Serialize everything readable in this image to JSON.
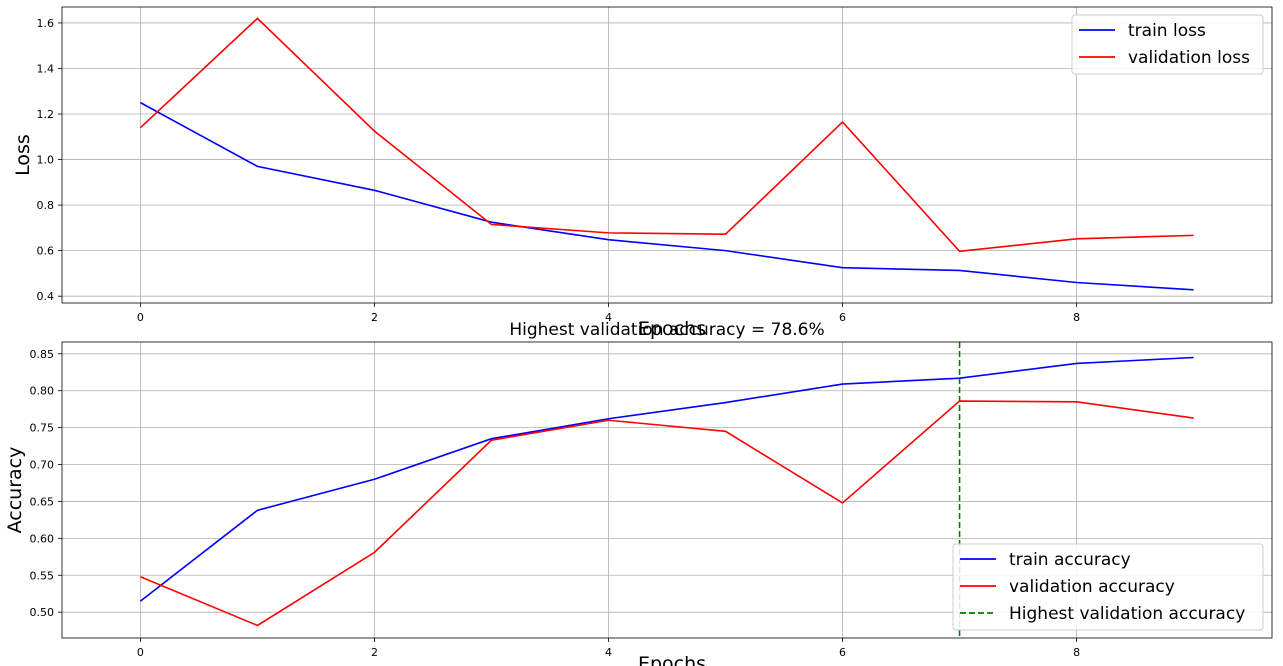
{
  "chart_data": [
    {
      "type": "line",
      "title": "",
      "xlabel": "Epochs",
      "ylabel": "Loss",
      "xlim": [
        -0.67,
        9.67
      ],
      "ylim": [
        0.37,
        1.67
      ],
      "xticks": [
        0,
        2,
        4,
        6,
        8
      ],
      "yticks": [
        0.4,
        0.6,
        0.8,
        1.0,
        1.2,
        1.4,
        1.6
      ],
      "ytick_labels": [
        "0.4",
        "0.6",
        "0.8",
        "1.0",
        "1.2",
        "1.4",
        "1.6"
      ],
      "grid": true,
      "legend_position": "top-right",
      "x": [
        0,
        1,
        2,
        3,
        4,
        5,
        6,
        7,
        8,
        9
      ],
      "series": [
        {
          "name": "train loss",
          "color": "#0000ff",
          "values": [
            1.25,
            0.97,
            0.865,
            0.725,
            0.648,
            0.6,
            0.525,
            0.513,
            0.46,
            0.428
          ]
        },
        {
          "name": "validation loss",
          "color": "#ff0000",
          "values": [
            1.14,
            1.62,
            1.125,
            0.715,
            0.678,
            0.672,
            1.165,
            0.597,
            0.652,
            0.667
          ]
        }
      ]
    },
    {
      "type": "line",
      "title": "Highest validation accuracy = 78.6%",
      "xlabel": "Epochs",
      "ylabel": "Accuracy",
      "xlim": [
        -0.67,
        9.67
      ],
      "ylim": [
        0.465,
        0.866
      ],
      "xticks": [
        0,
        2,
        4,
        6,
        8
      ],
      "yticks": [
        0.5,
        0.55,
        0.6,
        0.65,
        0.7,
        0.75,
        0.8,
        0.85
      ],
      "ytick_labels": [
        "0.50",
        "0.55",
        "0.60",
        "0.65",
        "0.70",
        "0.75",
        "0.80",
        "0.85"
      ],
      "grid": true,
      "legend_position": "bottom-right",
      "x": [
        0,
        1,
        2,
        3,
        4,
        5,
        6,
        7,
        8,
        9
      ],
      "series": [
        {
          "name": "train accuracy",
          "color": "#0000ff",
          "values": [
            0.515,
            0.638,
            0.68,
            0.735,
            0.762,
            0.784,
            0.809,
            0.817,
            0.837,
            0.845
          ]
        },
        {
          "name": "validation accuracy",
          "color": "#ff0000",
          "values": [
            0.548,
            0.482,
            0.581,
            0.733,
            0.76,
            0.745,
            0.648,
            0.786,
            0.785,
            0.763
          ]
        }
      ],
      "vline": {
        "name": "Highest validation accuracy",
        "x": 7,
        "color": "#008000",
        "style": "dashed"
      }
    }
  ]
}
